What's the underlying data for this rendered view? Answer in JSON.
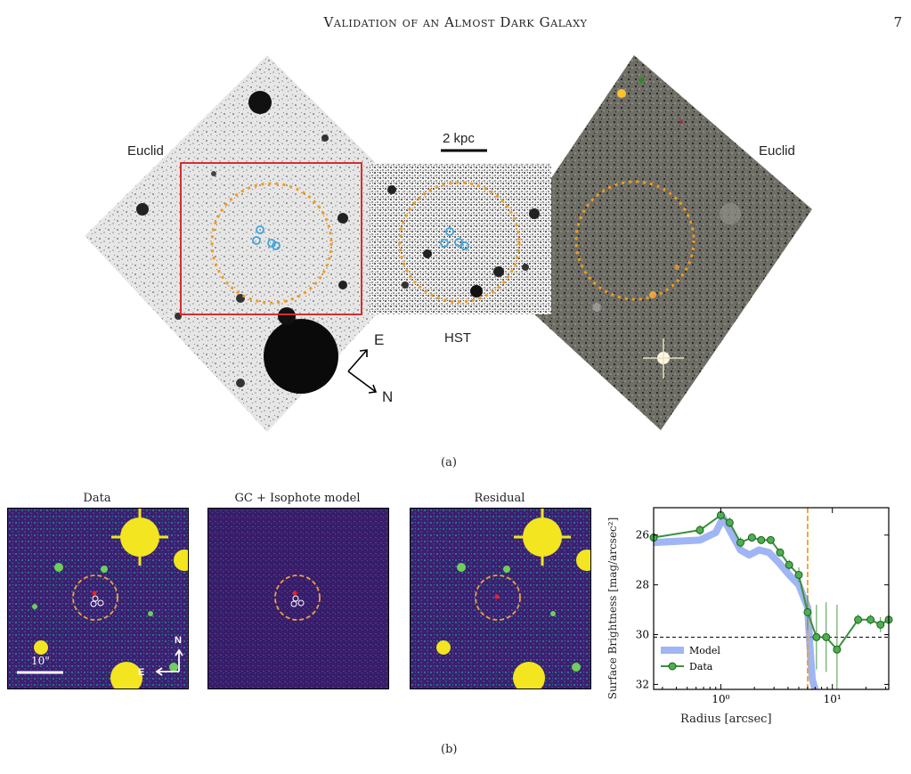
{
  "header": {
    "running_title": "Validation of an Almost Dark Galaxy",
    "page_number": "7"
  },
  "figure_a": {
    "label_euclid_left": "Euclid",
    "label_euclid_right": "Euclid",
    "label_hst": "HST",
    "scale_bar": "2 kpc",
    "compass_e": "E",
    "compass_n": "N",
    "caption": "(a)"
  },
  "figure_b": {
    "panel_titles": [
      "Data",
      "GC + Isophote model",
      "Residual"
    ],
    "scale_bar": "10\"",
    "compass_n": "N",
    "compass_e": "E",
    "caption": "(b)"
  },
  "chart_data": {
    "type": "line",
    "xlabel": "Radius [arcsec]",
    "ylabel": "Surface Brightness [mag/arcsec²]",
    "x_scale": "log",
    "xlim": [
      0.25,
      32
    ],
    "ylim": [
      32.2,
      24.9
    ],
    "y_inverted": true,
    "x_ticks": [
      "10⁰",
      "10¹"
    ],
    "y_ticks": [
      26,
      28,
      30,
      32
    ],
    "legend": [
      "Model",
      "Data"
    ],
    "legend_position": "bottom-left",
    "vline_x": 6.0,
    "hline_y": 30.1,
    "series": [
      {
        "name": "Model",
        "x": [
          0.25,
          0.65,
          0.9,
          1.05,
          1.2,
          1.5,
          1.8,
          2.2,
          2.7,
          3.3,
          4.1,
          5.0,
          6.0,
          6.3,
          6.6,
          7.0
        ],
        "y": [
          26.3,
          26.2,
          25.9,
          25.3,
          25.8,
          26.6,
          26.8,
          26.6,
          26.7,
          27.1,
          27.6,
          28.0,
          28.9,
          30.5,
          31.8,
          32.2
        ]
      },
      {
        "name": "Data",
        "x": [
          0.25,
          0.65,
          1.0,
          1.2,
          1.5,
          1.9,
          2.3,
          2.8,
          3.4,
          4.1,
          5.0,
          6.0,
          7.2,
          8.8,
          11,
          17,
          22,
          27,
          32
        ],
        "y": [
          26.1,
          25.8,
          25.2,
          25.5,
          26.3,
          26.1,
          26.2,
          26.2,
          26.7,
          27.2,
          27.6,
          29.1,
          30.1,
          30.1,
          30.6,
          29.4,
          29.4,
          29.6,
          29.4
        ],
        "yerr": [
          2.0,
          0.2,
          0.2,
          0.2,
          0.2,
          0.15,
          0.15,
          0.15,
          0.15,
          0.2,
          0.3,
          0.7,
          1.3,
          1.4,
          1.8,
          0.2,
          0.2,
          0.3,
          0.2
        ]
      }
    ]
  }
}
